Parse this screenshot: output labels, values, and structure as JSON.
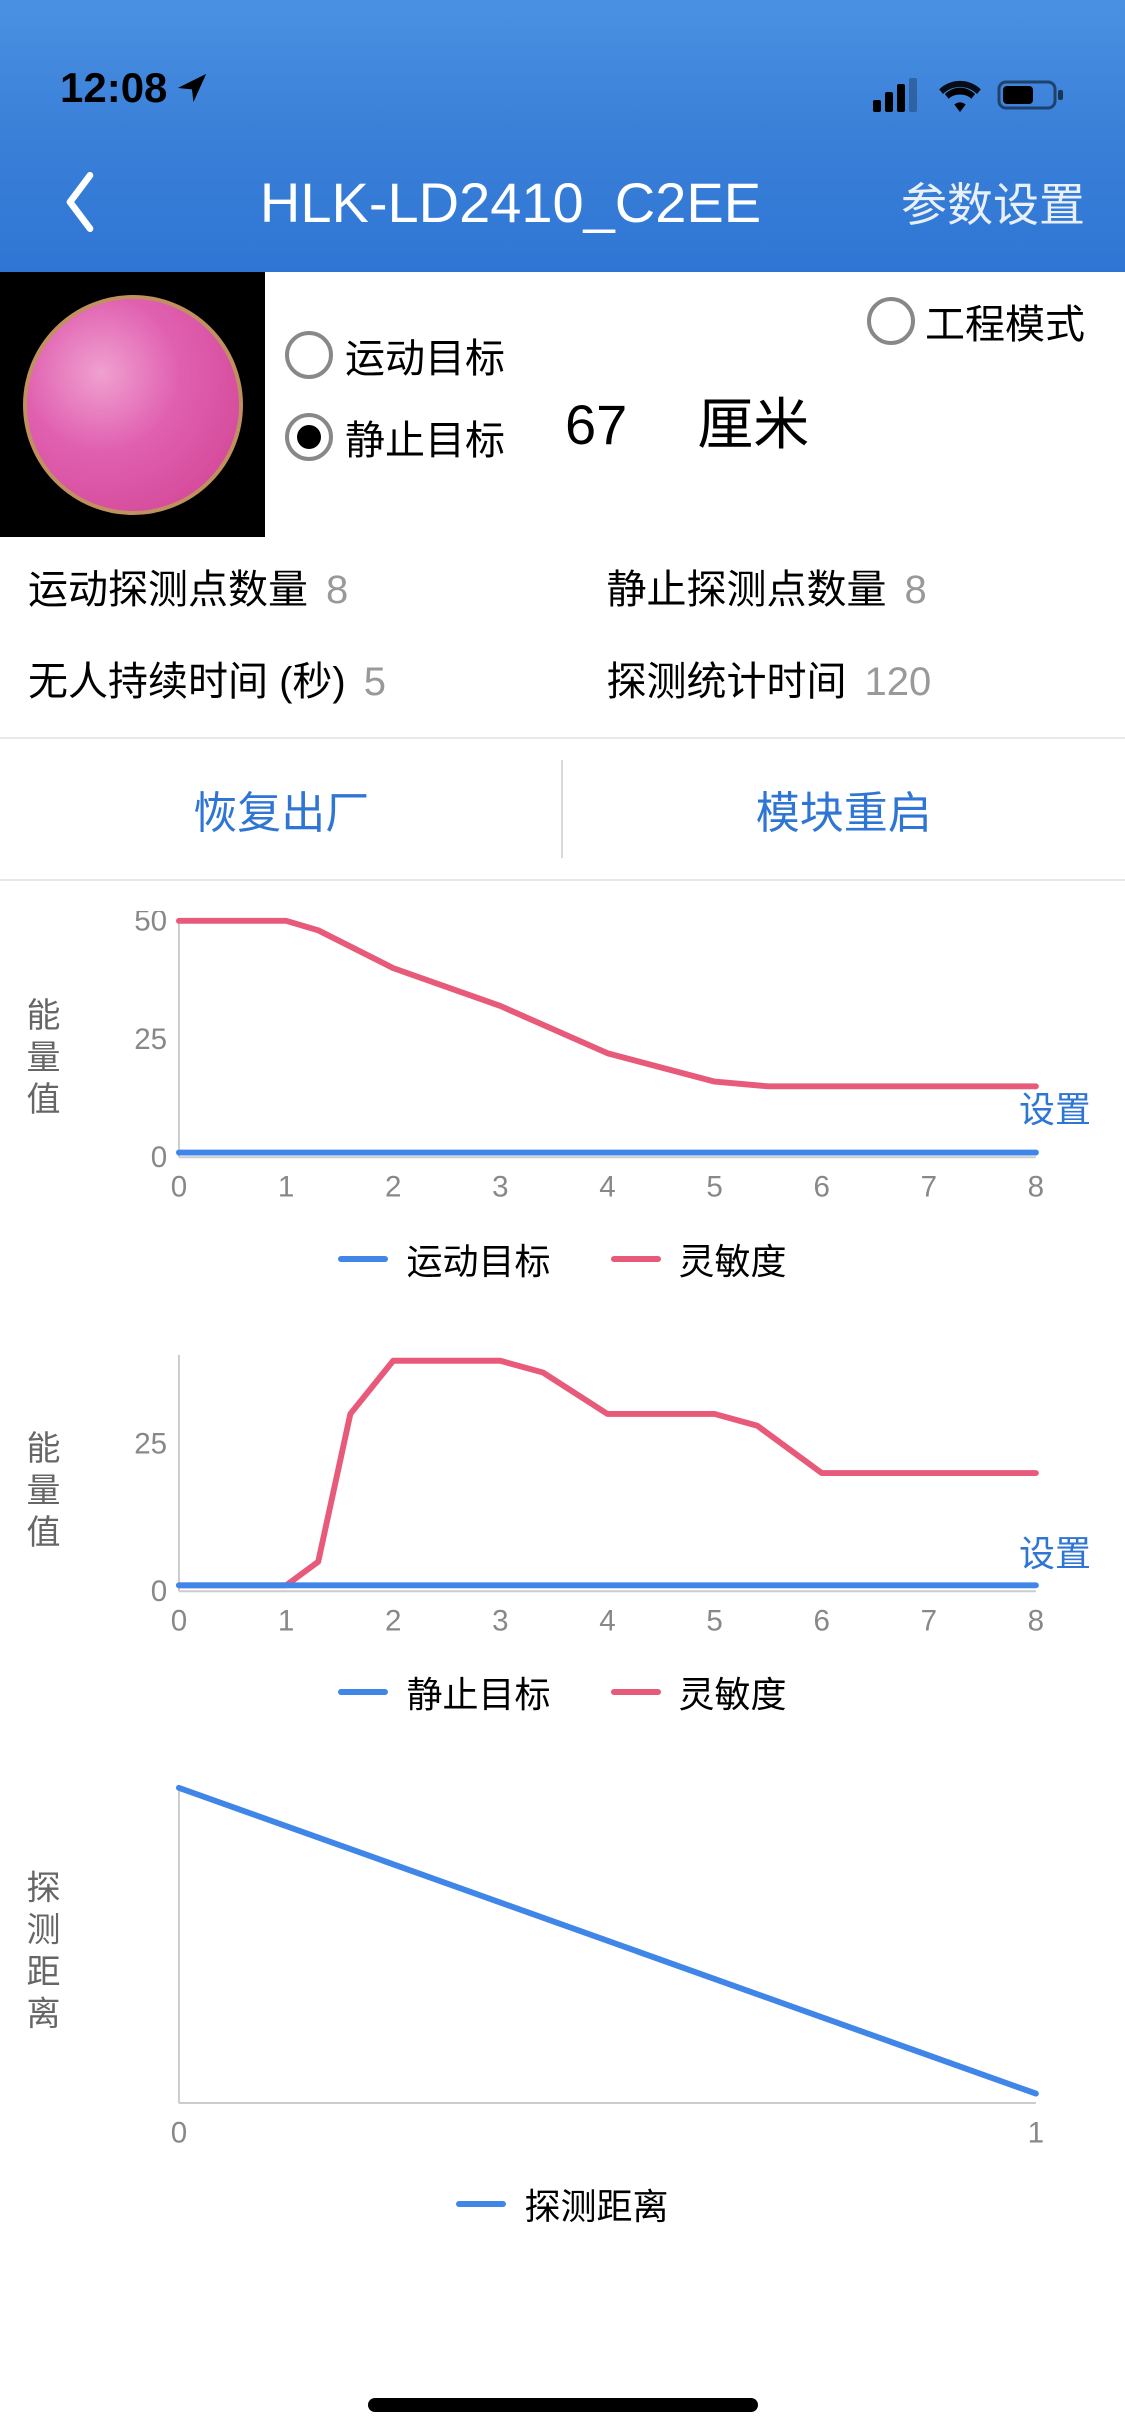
{
  "status": {
    "time": "12:08"
  },
  "nav": {
    "title": "HLK-LD2410_C2EE",
    "action": "参数设置"
  },
  "radios": {
    "moving": "运动目标",
    "still": "静止目标",
    "eng_mode": "工程模式"
  },
  "distance": {
    "value": "67",
    "unit": "厘米"
  },
  "stats": {
    "move_points_label": "运动探测点数量",
    "move_points_val": "8",
    "still_points_label": "静止探测点数量",
    "still_points_val": "8",
    "no_person_label": "无人持续时间 (秒)",
    "no_person_val": "5",
    "detect_time_label": "探测统计时间",
    "detect_time_val": "120"
  },
  "actions": {
    "factory_reset": "恢复出厂",
    "reboot": "模块重启"
  },
  "chart_common": {
    "setting": "设置",
    "colors": {
      "blue": "#3f86e8",
      "red": "#e85a7a",
      "axis": "#cccccc",
      "grid": "#f0f0f0"
    }
  },
  "chart1": {
    "ylabel": "能量值",
    "ylim": [
      0,
      50
    ],
    "yticks": [
      0,
      25,
      50
    ],
    "xlim": [
      0,
      8
    ],
    "xticks": [
      0,
      1,
      2,
      3,
      4,
      5,
      6,
      7,
      8
    ],
    "series_blue": {
      "name": "运动目标",
      "color": "#3f86e8",
      "points": [
        [
          0,
          1
        ],
        [
          1,
          1
        ],
        [
          2,
          1
        ],
        [
          3,
          1
        ],
        [
          4,
          1
        ],
        [
          5,
          1
        ],
        [
          6,
          1
        ],
        [
          7,
          1
        ],
        [
          8,
          1
        ]
      ]
    },
    "series_red": {
      "name": "灵敏度",
      "color": "#e85a7a",
      "points": [
        [
          0,
          50
        ],
        [
          1,
          50
        ],
        [
          1.3,
          48
        ],
        [
          2,
          40
        ],
        [
          3,
          32
        ],
        [
          4,
          22
        ],
        [
          5,
          16
        ],
        [
          5.5,
          15
        ],
        [
          6,
          15
        ],
        [
          7,
          15
        ],
        [
          8,
          15
        ]
      ]
    },
    "line_width": 6
  },
  "chart2": {
    "ylabel": "能量值",
    "ylim": [
      0,
      40
    ],
    "yticks": [
      0,
      25
    ],
    "xlim": [
      0,
      8
    ],
    "xticks": [
      0,
      1,
      2,
      3,
      4,
      5,
      6,
      7,
      8
    ],
    "series_blue": {
      "name": "静止目标",
      "color": "#3f86e8",
      "points": [
        [
          0,
          1
        ],
        [
          1,
          1
        ],
        [
          2,
          1
        ],
        [
          3,
          1
        ],
        [
          4,
          1
        ],
        [
          5,
          1
        ],
        [
          6,
          1
        ],
        [
          7,
          1
        ],
        [
          8,
          1
        ]
      ]
    },
    "series_red": {
      "name": "灵敏度",
      "color": "#e85a7a",
      "points": [
        [
          0,
          1
        ],
        [
          1,
          1
        ],
        [
          1.3,
          5
        ],
        [
          1.6,
          30
        ],
        [
          2,
          39
        ],
        [
          3,
          39
        ],
        [
          3.4,
          37
        ],
        [
          4,
          30
        ],
        [
          5,
          30
        ],
        [
          5.4,
          28
        ],
        [
          6,
          20
        ],
        [
          7,
          20
        ],
        [
          8,
          20
        ]
      ]
    },
    "line_width": 6
  },
  "chart3": {
    "ylabel": "探测距离",
    "ylim": [
      0,
      1
    ],
    "yticks": [],
    "xlim": [
      0,
      1
    ],
    "xticks": [
      0,
      1
    ],
    "series_blue": {
      "name": "探测距离",
      "color": "#3f86e8",
      "points": [
        [
          0,
          1
        ],
        [
          1,
          0.03
        ]
      ]
    },
    "line_width": 6
  }
}
